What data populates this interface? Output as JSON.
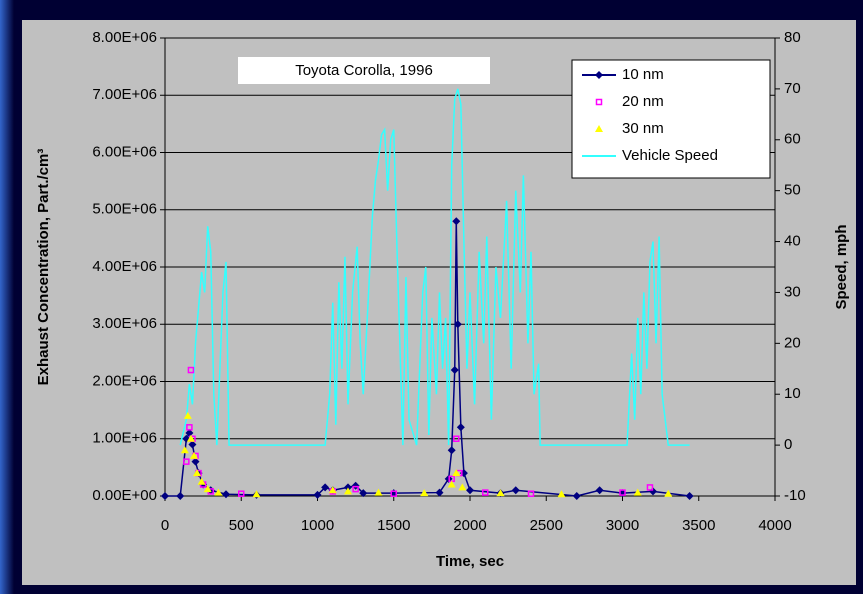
{
  "chart_data": {
    "type": "line",
    "title": "Toyota Corolla, 1996",
    "x_label": "Time, sec",
    "y_label": "Exhaust Concentration, Part./cm³",
    "y2_label": "Speed, mph",
    "xlim": [
      0,
      4000
    ],
    "xticks": [
      0,
      500,
      1000,
      1500,
      2000,
      2500,
      3000,
      3500,
      4000
    ],
    "ylim": [
      0,
      8000000
    ],
    "yticks": [
      {
        "value": 0,
        "label": "0.00E+00"
      },
      {
        "value": 1000000,
        "label": "1.00E+06"
      },
      {
        "value": 2000000,
        "label": "2.00E+06"
      },
      {
        "value": 3000000,
        "label": "3.00E+06"
      },
      {
        "value": 4000000,
        "label": "4.00E+06"
      },
      {
        "value": 5000000,
        "label": "5.00E+06"
      },
      {
        "value": 6000000,
        "label": "6.00E+06"
      },
      {
        "value": 7000000,
        "label": "7.00E+06"
      },
      {
        "value": {
          "value": 8000000,
          "label": "8.00E+06"
        },
        "label": "8.00E+06"
      }
    ],
    "y2lim": [
      -10,
      80
    ],
    "y2ticks": [
      -10,
      0,
      10,
      20,
      30,
      40,
      50,
      60,
      70,
      80
    ],
    "grid": true,
    "legend": "top-right",
    "series": [
      {
        "name": "10 nm",
        "color": "#000080",
        "marker": "diamond",
        "line": true,
        "x": [
          0,
          100,
          140,
          160,
          180,
          200,
          220,
          250,
          300,
          400,
          600,
          1000,
          1050,
          1100,
          1200,
          1250,
          1300,
          1500,
          1800,
          1860,
          1880,
          1900,
          1910,
          1920,
          1940,
          1960,
          2000,
          2200,
          2300,
          2700,
          2850,
          3000,
          3200,
          3440
        ],
        "values": [
          0,
          0,
          1000000,
          1100000,
          900000,
          600000,
          400000,
          200000,
          100000,
          30000,
          20000,
          20000,
          150000,
          100000,
          150000,
          180000,
          50000,
          50000,
          60000,
          300000,
          800000,
          2200000,
          4800000,
          3000000,
          1200000,
          400000,
          100000,
          50000,
          100000,
          0,
          100000,
          50000,
          80000,
          0
        ]
      },
      {
        "name": "20 nm",
        "color": "#ff00ff",
        "marker": "square",
        "line": false,
        "x": [
          140,
          160,
          170,
          180,
          200,
          220,
          250,
          300,
          500,
          1100,
          1250,
          1500,
          1880,
          1910,
          1930,
          2100,
          2400,
          3000,
          3180
        ],
        "values": [
          600000,
          1200000,
          2200000,
          1000000,
          700000,
          400000,
          200000,
          80000,
          40000,
          80000,
          120000,
          40000,
          300000,
          1000000,
          400000,
          60000,
          40000,
          60000,
          150000
        ]
      },
      {
        "name": "30 nm",
        "color": "#ffff00",
        "marker": "triangle",
        "line": false,
        "x": [
          130,
          150,
          170,
          190,
          210,
          240,
          280,
          350,
          600,
          1100,
          1200,
          1400,
          1700,
          1880,
          1910,
          1950,
          2200,
          2600,
          3100,
          3300
        ],
        "values": [
          800000,
          1400000,
          1000000,
          700000,
          400000,
          250000,
          120000,
          60000,
          30000,
          100000,
          80000,
          60000,
          50000,
          200000,
          400000,
          150000,
          50000,
          30000,
          60000,
          40000
        ]
      },
      {
        "name": "Vehicle Speed",
        "color": "#33ffff",
        "marker": "none",
        "line": true,
        "axis": "y2",
        "x": [
          100,
          140,
          160,
          180,
          200,
          220,
          240,
          260,
          280,
          300,
          320,
          340,
          360,
          380,
          400,
          420,
          1050,
          1080,
          1100,
          1120,
          1140,
          1160,
          1180,
          1200,
          1230,
          1260,
          1280,
          1300,
          1330,
          1360,
          1380,
          1400,
          1420,
          1440,
          1460,
          1480,
          1500,
          1520,
          1540,
          1560,
          1580,
          1600,
          1650,
          1690,
          1710,
          1730,
          1750,
          1780,
          1800,
          1820,
          1840,
          1860,
          1880,
          1900,
          1920,
          1940,
          1960,
          1980,
          2000,
          2030,
          2060,
          2090,
          2110,
          2140,
          2170,
          2200,
          2240,
          2270,
          2300,
          2330,
          2350,
          2380,
          2400,
          2420,
          2450,
          2460,
          2500,
          3030,
          3060,
          3080,
          3100,
          3120,
          3140,
          3160,
          3180,
          3200,
          3220,
          3240,
          3260,
          3300,
          3440
        ],
        "values": [
          0,
          5,
          12,
          8,
          20,
          27,
          34,
          30,
          43,
          38,
          10,
          0,
          15,
          30,
          36,
          0,
          0,
          10,
          28,
          4,
          32,
          15,
          37,
          8,
          30,
          39,
          20,
          10,
          27,
          45,
          52,
          56,
          61,
          62,
          50,
          60,
          62,
          40,
          20,
          0,
          33,
          5,
          0,
          30,
          35,
          2,
          25,
          10,
          30,
          15,
          25,
          0,
          55,
          68,
          70,
          67,
          40,
          15,
          30,
          8,
          38,
          20,
          41,
          5,
          35,
          25,
          48,
          15,
          50,
          30,
          53,
          20,
          38,
          10,
          16,
          0,
          0,
          0,
          18,
          5,
          25,
          10,
          30,
          15,
          36,
          40,
          20,
          41,
          10,
          0,
          0
        ]
      }
    ]
  }
}
